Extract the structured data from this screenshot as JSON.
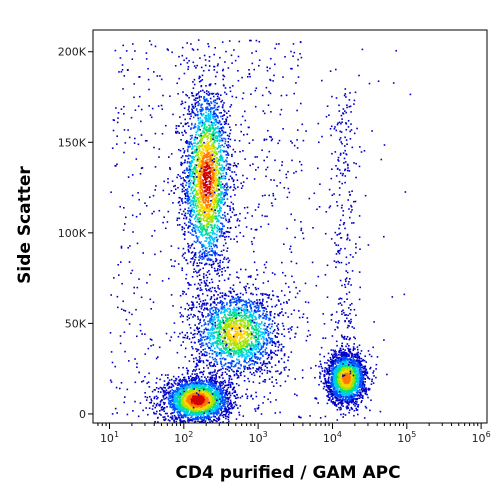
{
  "chart_data": {
    "type": "scatter",
    "style": "density-dot-plot",
    "xlabel": "CD4 purified / GAM APC",
    "ylabel": "Side Scatter",
    "x_scale": "log",
    "xlim": [
      6,
      1200000
    ],
    "ylim": [
      -5000,
      212000
    ],
    "x_ticks": [
      {
        "value": 10,
        "base": "10",
        "exp": "1"
      },
      {
        "value": 100,
        "base": "10",
        "exp": "2"
      },
      {
        "value": 1000,
        "base": "10",
        "exp": "3"
      },
      {
        "value": 10000,
        "base": "10",
        "exp": "4"
      },
      {
        "value": 100000,
        "base": "10",
        "exp": "5"
      },
      {
        "value": 1000000,
        "base": "10",
        "exp": "6"
      }
    ],
    "y_ticks": [
      {
        "value": 0,
        "label": "0"
      },
      {
        "value": 50000,
        "label": "50K"
      },
      {
        "value": 100000,
        "label": "100K"
      },
      {
        "value": 150000,
        "label": "150K"
      },
      {
        "value": 200000,
        "label": "200K"
      }
    ],
    "density_colors": [
      "#0000c8",
      "#0050ff",
      "#00c8ff",
      "#00e08c",
      "#a0e600",
      "#ffd200",
      "#ff7800",
      "#d20000"
    ],
    "clusters": [
      {
        "center_x": 200,
        "center_y": 130000,
        "spread_log_x": 0.16,
        "spread_y": 26000,
        "density_peak": 0.95
      },
      {
        "center_x": 150,
        "center_y": 8000,
        "spread_log_x": 0.22,
        "spread_y": 6000,
        "density_peak": 1.0
      },
      {
        "center_x": 500,
        "center_y": 45000,
        "spread_log_x": 0.3,
        "spread_y": 12000,
        "density_peak": 0.7
      },
      {
        "center_x": 15000,
        "center_y": 20000,
        "spread_log_x": 0.13,
        "spread_y": 7000,
        "density_peak": 0.85
      }
    ]
  }
}
